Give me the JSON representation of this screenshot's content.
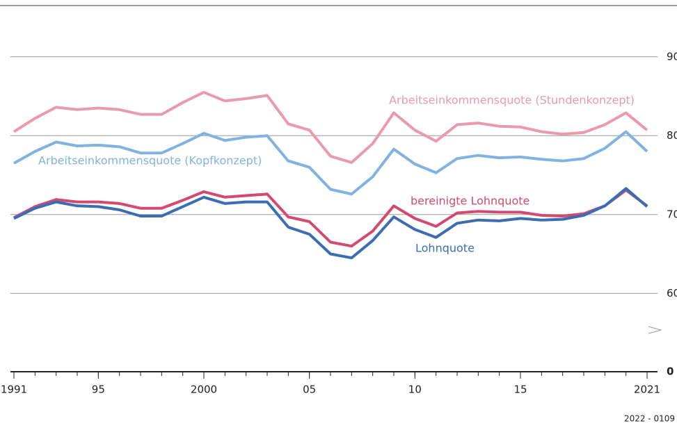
{
  "chart_data": {
    "type": "line",
    "x": [
      1991,
      1992,
      1993,
      1994,
      1995,
      1996,
      1997,
      1998,
      1999,
      2000,
      2001,
      2002,
      2003,
      2004,
      2005,
      2006,
      2007,
      2008,
      2009,
      2010,
      2011,
      2012,
      2013,
      2014,
      2015,
      2016,
      2017,
      2018,
      2019,
      2020,
      2021
    ],
    "series": [
      {
        "name": "Arbeitseinkommensquote (Stundenkonzept)",
        "color": "#e99aad",
        "values": [
          80.5,
          82.2,
          83.6,
          83.3,
          83.5,
          83.3,
          82.7,
          82.7,
          84.2,
          85.5,
          84.4,
          84.7,
          85.1,
          81.5,
          80.7,
          77.4,
          76.6,
          79.0,
          82.9,
          80.7,
          79.3,
          81.4,
          81.6,
          81.2,
          81.1,
          80.5,
          80.2,
          80.4,
          81.4,
          82.9,
          80.7
        ]
      },
      {
        "name": "Arbeitseinkommensquote (Kopfkonzept)",
        "color": "#80b3e0",
        "values": [
          76.5,
          78.0,
          79.2,
          78.7,
          78.8,
          78.6,
          77.8,
          77.8,
          79.0,
          80.3,
          79.4,
          79.8,
          80.0,
          76.8,
          76.0,
          73.2,
          72.6,
          74.8,
          78.3,
          76.4,
          75.3,
          77.1,
          77.5,
          77.2,
          77.3,
          77.0,
          76.8,
          77.1,
          78.4,
          80.5,
          78.0
        ]
      },
      {
        "name": "bereinigte Lohnquote",
        "color": "#d24a70",
        "values": [
          69.6,
          71.0,
          71.9,
          71.6,
          71.6,
          71.4,
          70.8,
          70.8,
          71.8,
          72.9,
          72.2,
          72.4,
          72.6,
          69.7,
          69.1,
          66.5,
          66.0,
          67.9,
          71.1,
          69.5,
          68.5,
          70.2,
          70.4,
          70.3,
          70.3,
          69.9,
          69.8,
          70.1,
          71.1,
          73.1,
          71.1
        ]
      },
      {
        "name": "Lohnquote",
        "color": "#3b6db5",
        "values": [
          69.5,
          70.8,
          71.6,
          71.1,
          71.0,
          70.6,
          69.8,
          69.8,
          71.0,
          72.2,
          71.4,
          71.6,
          71.6,
          68.4,
          67.5,
          65.0,
          64.5,
          66.7,
          69.7,
          68.1,
          67.1,
          68.9,
          69.3,
          69.2,
          69.5,
          69.3,
          69.4,
          69.9,
          71.1,
          73.3,
          71.0
        ]
      }
    ],
    "xlim": [
      1991,
      2021
    ],
    "xticks": [
      1991,
      {
        "value": 1995,
        "label": "95"
      },
      2000,
      {
        "value": 2005,
        "label": "05"
      },
      {
        "value": 2010,
        "label": "10"
      },
      {
        "value": 2015,
        "label": "15"
      },
      2021
    ],
    "ylim": [
      0,
      96.5
    ],
    "yticks": [
      0,
      60,
      70,
      80,
      90
    ],
    "y_axis_break": true,
    "grid": true,
    "footnote": "2022 - 0109"
  }
}
